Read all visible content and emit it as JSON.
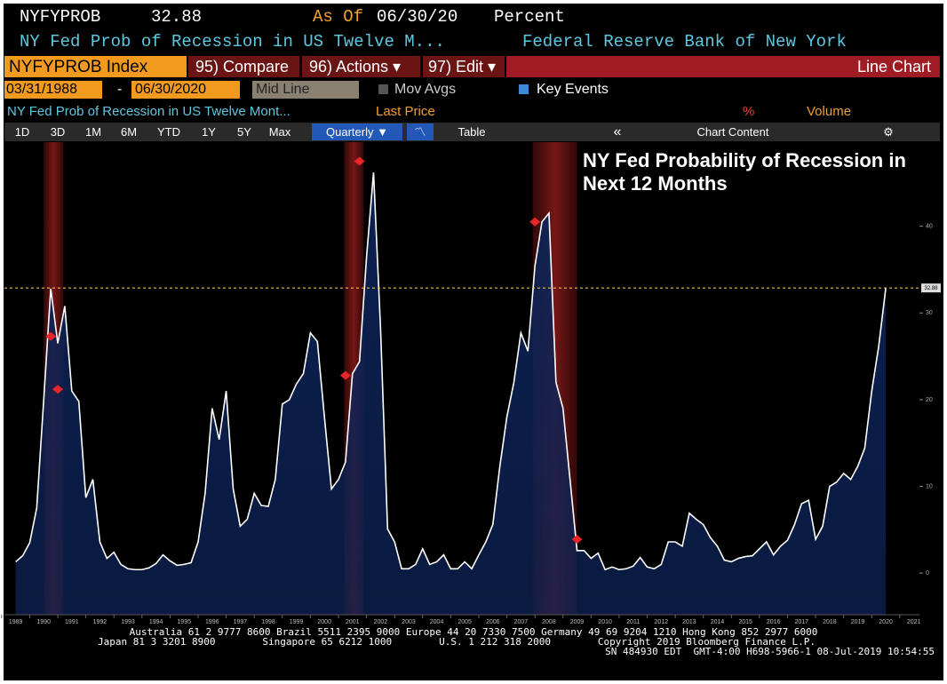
{
  "header": {
    "ticker": "NYFYPROB",
    "last": "32.88",
    "as_of_label": "As Of",
    "as_of_date": "06/30/20",
    "units": "Percent",
    "description": "NY Fed Prob of Recession in US Twelve M...",
    "source": "Federal Reserve Bank of New York"
  },
  "toolbar": {
    "index": "NYFYPROB Index",
    "compare": "95) Compare",
    "actions": "96) Actions ▾",
    "edit": "97) Edit ▾",
    "chart_type": "Line Chart"
  },
  "range": {
    "start": "03/31/1988",
    "end": "06/30/2020",
    "line_mode": "Mid Line",
    "mov_avgs": "Mov Avgs",
    "key_events": "Key Events"
  },
  "legend_row": {
    "series": "NY Fed Prob of Recession in US Twelve Mont...",
    "last_price": "Last Price",
    "percent": "%",
    "volume": "Volume"
  },
  "periods": [
    "1D",
    "3D",
    "1M",
    "6M",
    "YTD",
    "1Y",
    "5Y",
    "Max"
  ],
  "frequency": "Quarterly ▼",
  "table": "Table",
  "collapse": "«",
  "chart_content": "Chart Content",
  "settings": "⚙",
  "footer": [
    "Australia 61 2 9777 8600 Brazil 5511 2395 9000 Europe 44 20 7330 7500 Germany 49 69 9204 1210 Hong Kong 852 2977 6000",
    "Japan 81 3 3201 8900        Singapore 65 6212 1000        U.S. 1 212 318 2000        Copyright 2019 Bloomberg Finance L.P.",
    "SN 484930 EDT  GMT-4:00 H698-5966-1 08-Jul-2019 10:54:55"
  ],
  "chart_data": {
    "type": "area",
    "title": "NY Fed Probability of Recession in Next 12 Months",
    "x": [
      1989.5,
      1989.75,
      1990,
      1990.25,
      1990.5,
      1990.75,
      1991,
      1991.25,
      1991.5,
      1991.75,
      1992,
      1992.25,
      1992.5,
      1992.75,
      1993,
      1993.25,
      1993.5,
      1993.75,
      1994,
      1994.25,
      1994.5,
      1994.75,
      1995,
      1995.25,
      1995.5,
      1995.75,
      1996,
      1996.25,
      1996.5,
      1996.75,
      1997,
      1997.25,
      1997.5,
      1997.75,
      1998,
      1998.25,
      1998.5,
      1998.75,
      1999,
      1999.25,
      1999.5,
      1999.75,
      2000,
      2000.25,
      2000.5,
      2000.75,
      2001,
      2001.25,
      2001.5,
      2001.75,
      2002,
      2002.25,
      2002.5,
      2002.75,
      2003,
      2003.25,
      2003.5,
      2003.75,
      2004,
      2004.25,
      2004.5,
      2004.75,
      2005,
      2005.25,
      2005.5,
      2005.75,
      2006,
      2006.25,
      2006.5,
      2006.75,
      2007,
      2007.25,
      2007.5,
      2007.75,
      2008,
      2008.25,
      2008.5,
      2008.75,
      2009,
      2009.25,
      2009.5,
      2009.75,
      2010,
      2010.25,
      2010.5,
      2010.75,
      2011,
      2011.25,
      2011.5,
      2011.75,
      2012,
      2012.25,
      2012.5,
      2012.75,
      2013,
      2013.25,
      2013.5,
      2013.75,
      2014,
      2014.25,
      2014.5,
      2014.75,
      2015,
      2015.25,
      2015.5,
      2015.75,
      2016,
      2016.25,
      2016.5,
      2016.75,
      2017,
      2017.25,
      2017.5,
      2017.75,
      2018,
      2018.25,
      2018.5,
      2018.75,
      2019,
      2019.25,
      2019.5,
      2019.75,
      2020,
      2020.25,
      2020.5
    ],
    "values": [
      1.3,
      2.0,
      3.5,
      7.5,
      20,
      32.8,
      26.5,
      30.8,
      21,
      19.8,
      8.7,
      10.8,
      3.6,
      1.7,
      2.4,
      1.0,
      0.5,
      0.4,
      0.4,
      0.6,
      1.1,
      2.1,
      1.4,
      0.9,
      1.0,
      1.2,
      3.6,
      9.2,
      19,
      15.4,
      21,
      9.7,
      5.4,
      6.2,
      9.2,
      7.8,
      7.7,
      10.8,
      19.5,
      20,
      21.8,
      23,
      27.7,
      26.7,
      18,
      9.7,
      10.8,
      12.8,
      23,
      24.4,
      36.4,
      46.2,
      28.2,
      5.1,
      3.6,
      0.5,
      0.5,
      1.0,
      2.8,
      1.0,
      1.3,
      2.1,
      0.5,
      0.5,
      1.3,
      0.5,
      2.1,
      3.6,
      5.6,
      12.3,
      18,
      22,
      27.7,
      25.6,
      35.4,
      40.5,
      41.5,
      22,
      19,
      10.8,
      2.6,
      2.6,
      1.7,
      2.3,
      0.4,
      0.7,
      0.4,
      0.5,
      0.8,
      1.8,
      0.7,
      0.5,
      1.0,
      3.6,
      3.6,
      3.1,
      6.9,
      6.2,
      5.6,
      4.1,
      3.1,
      1.5,
      1.3,
      1.7,
      1.9,
      2.0,
      2.8,
      3.6,
      2.1,
      3.1,
      3.8,
      5.6,
      8.0,
      8.4,
      3.9,
      5.4,
      10.0,
      10.5,
      11.5,
      10.8,
      12.3,
      14.4,
      21,
      26.2,
      32.88
    ],
    "line_color": "#ffffff",
    "fill_color": "#0d2355",
    "xlim": [
      1989.1,
      2021.7
    ],
    "xticks": [
      1989,
      1990,
      1991,
      1992,
      1993,
      1994,
      1995,
      1996,
      1997,
      1998,
      1999,
      2000,
      2001,
      2002,
      2003,
      2004,
      2005,
      2006,
      2007,
      2008,
      2009,
      2010,
      2011,
      2012,
      2013,
      2014,
      2015,
      2016,
      2017,
      2018,
      2019,
      2020,
      2021
    ],
    "ylim": [
      -4.8,
      49.7
    ],
    "yticks": [
      0,
      10,
      20,
      30,
      40
    ],
    "shaded_regions": [
      [
        1990.5,
        1991.2
      ],
      [
        2001.2,
        2001.9
      ],
      [
        2007.92,
        2009.5
      ]
    ],
    "shade_color": "#8b1a1a",
    "key_events": {
      "x": [
        1990.75,
        1991.0,
        2001.25,
        2001.75,
        2008.0,
        2009.5
      ],
      "values": [
        27.3,
        21.2,
        22.8,
        47.5,
        40.5,
        3.9
      ],
      "color": "#e8252a"
    },
    "last_value": 32.88,
    "last_value_color": "#f2c12e"
  }
}
